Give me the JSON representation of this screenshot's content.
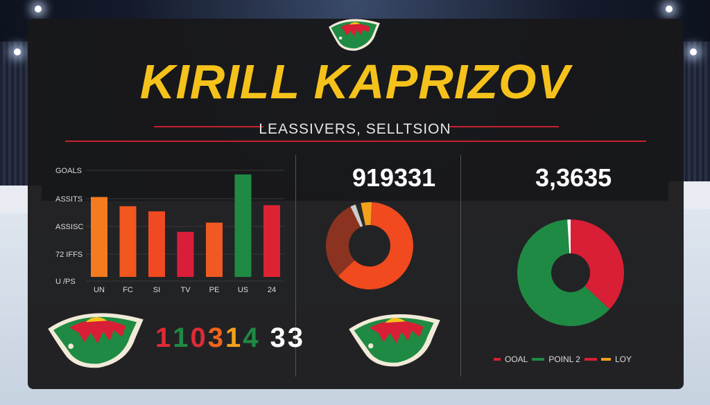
{
  "header": {
    "title": "KIRILL KAPRIZOV",
    "subtitle": "LEASSIVERS, SELLTSION"
  },
  "logo": {
    "icon": "wild-logo-icon"
  },
  "stats": {
    "middle_number": "919331",
    "right_number": "3,3635",
    "bottom_sequence": [
      {
        "text": "1",
        "color": "#e02a35"
      },
      {
        "text": "1",
        "color": "#1f8a43"
      },
      {
        "text": "0",
        "color": "#e02a35"
      },
      {
        "text": "3",
        "color": "#f0641e"
      },
      {
        "text": "1",
        "color": "#f5a11b"
      },
      {
        "text": "4",
        "color": "#1f8a43"
      },
      {
        "text": "33",
        "color": "#ffffff"
      }
    ]
  },
  "colors": {
    "accent": "#f5c21b",
    "red": "#d81f35",
    "green": "#1f8a43",
    "orange": "#f0641e"
  },
  "chart_data": [
    {
      "type": "bar",
      "ytick_labels": [
        "GOALS",
        "ASSITS",
        "ASSISC",
        "72 IFFS",
        "U /PS"
      ],
      "categories": [
        "UN",
        "FC",
        "SI",
        "TV",
        "PE",
        "US",
        "24"
      ],
      "values": [
        0.78,
        0.69,
        0.64,
        0.44,
        0.53,
        1.0,
        0.7
      ],
      "colors": [
        "#f47b1f",
        "#f1571e",
        "#ef4a22",
        "#d91e3a",
        "#f05a22",
        "#1f8a43",
        "#dd2234"
      ],
      "ylim": [
        0,
        1
      ]
    },
    {
      "type": "pie",
      "style": "donut",
      "slices": [
        {
          "value": 0.62,
          "color": "#f04a1e"
        },
        {
          "value": 0.3,
          "color": "#8b3320"
        },
        {
          "value": 0.02,
          "color": "#cccccc"
        },
        {
          "value": 0.02,
          "color": "#2a2a2a"
        },
        {
          "value": 0.04,
          "color": "#f5a11b"
        }
      ]
    },
    {
      "type": "pie",
      "style": "donut",
      "slices": [
        {
          "value": 0.37,
          "color": "#d81f35"
        },
        {
          "value": 0.62,
          "color": "#1f8a43"
        },
        {
          "value": 0.01,
          "color": "#ffffff"
        }
      ],
      "legend": [
        {
          "label": "OOAL",
          "color": "#d81f35"
        },
        {
          "label": "POINL 2",
          "color": "#1f8a43"
        },
        {
          "label": "LOY",
          "color": "#d81f35",
          "color2": "#f5a11b"
        }
      ]
    }
  ]
}
